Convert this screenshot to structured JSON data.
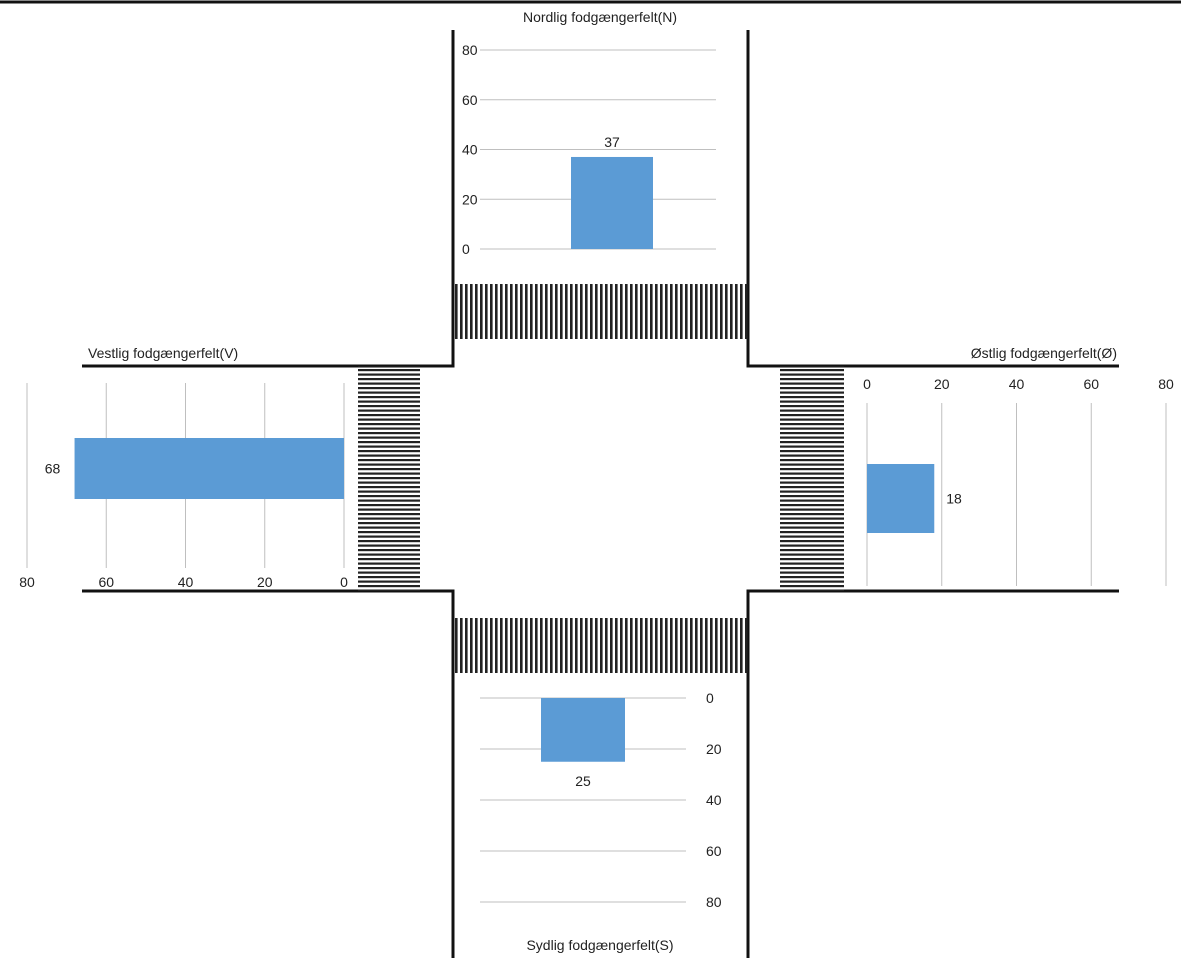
{
  "colors": {
    "bar": "#5b9bd5",
    "grid": "#bfbfbf",
    "road": "#111111",
    "crossing": "#222222"
  },
  "chart_data": [
    {
      "type": "bar",
      "id": "north",
      "title": "Nordlig fodgængerfelt(N)",
      "orientation": "vertical",
      "categories": [
        "N"
      ],
      "values": [
        37
      ],
      "data_labels": [
        "37"
      ],
      "ticks": [
        "0",
        "20",
        "40",
        "60",
        "80"
      ],
      "ylim": [
        0,
        80
      ],
      "grid": true
    },
    {
      "type": "bar",
      "id": "south",
      "title": "Sydlig fodgængerfelt(S)",
      "orientation": "vertical-inverted",
      "categories": [
        "S"
      ],
      "values": [
        25
      ],
      "data_labels": [
        "25"
      ],
      "ticks": [
        "0",
        "20",
        "40",
        "60",
        "80"
      ],
      "ylim": [
        0,
        80
      ],
      "grid": true
    },
    {
      "type": "bar",
      "id": "west",
      "title": "Vestlig fodgængerfelt(V)",
      "orientation": "horizontal-reversed",
      "categories": [
        "V"
      ],
      "values": [
        68
      ],
      "data_labels": [
        "68"
      ],
      "ticks": [
        "0",
        "20",
        "40",
        "60",
        "80"
      ],
      "xlim": [
        0,
        80
      ],
      "grid": true
    },
    {
      "type": "bar",
      "id": "east",
      "title": "Østlig fodgængerfelt(Ø)",
      "orientation": "horizontal",
      "categories": [
        "Ø"
      ],
      "values": [
        18
      ],
      "data_labels": [
        "18"
      ],
      "ticks": [
        "0",
        "20",
        "40",
        "60",
        "80"
      ],
      "xlim": [
        0,
        80
      ],
      "grid": true
    }
  ]
}
